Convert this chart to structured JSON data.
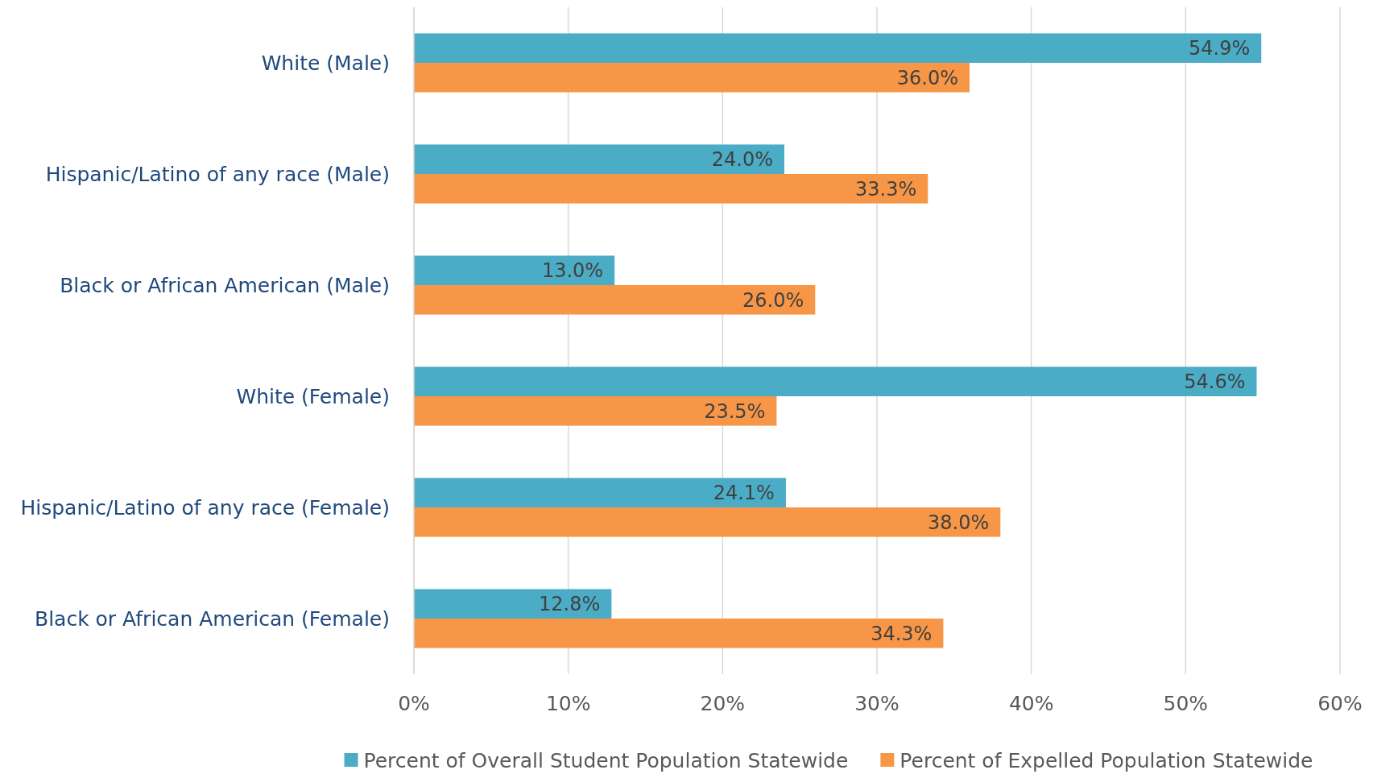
{
  "chart_data": {
    "type": "bar",
    "orientation": "horizontal",
    "categories": [
      "White (Male)",
      "Hispanic/Latino of any race (Male)",
      "Black or African American (Male)",
      "White (Female)",
      "Hispanic/Latino of any race (Female)",
      "Black or African American (Female)"
    ],
    "series": [
      {
        "name": "Percent of Overall Student Population Statewide",
        "color": "#4bacc6",
        "values": [
          54.9,
          24.0,
          13.0,
          54.6,
          24.1,
          12.8
        ],
        "value_labels": [
          "54.9%",
          "24.0%",
          "13.0%",
          "54.6%",
          "24.1%",
          "12.8%"
        ]
      },
      {
        "name": "Percent of Expelled Population Statewide",
        "color": "#f79646",
        "values": [
          36.0,
          33.3,
          26.0,
          23.5,
          38.0,
          34.3
        ],
        "value_labels": [
          "36.0%",
          "33.3%",
          "26.0%",
          "23.5%",
          "38.0%",
          "34.3%"
        ]
      }
    ],
    "xlim": [
      0,
      60
    ],
    "xticks": [
      {
        "value": 0,
        "label": "0%"
      },
      {
        "value": 10,
        "label": "10%"
      },
      {
        "value": 20,
        "label": "20%"
      },
      {
        "value": 30,
        "label": "30%"
      },
      {
        "value": 40,
        "label": "40%"
      },
      {
        "value": 50,
        "label": "50%"
      },
      {
        "value": 60,
        "label": "60%"
      }
    ],
    "grid": "x",
    "legend": "bottom"
  }
}
